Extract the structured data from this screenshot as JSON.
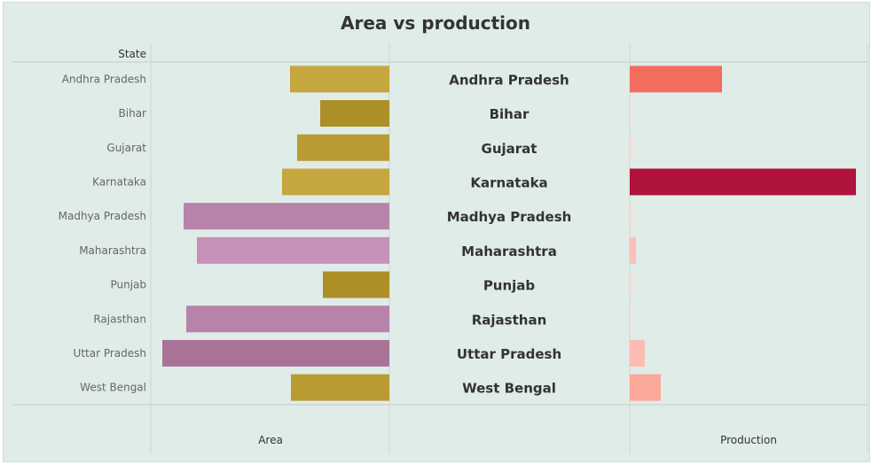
{
  "chart_data": {
    "type": "bar",
    "title": "Area vs production",
    "row_header": "State",
    "categories": [
      "Andhra Pradesh",
      "Bihar",
      "Gujarat",
      "Karnataka",
      "Madhya Pradesh",
      "Maharashtra",
      "Punjab",
      "Rajasthan",
      "Uttar Pradesh",
      "West Bengal"
    ],
    "series": [
      {
        "name": "Area",
        "values": [
          112,
          78,
          104,
          121,
          232,
          217,
          75,
          229,
          256,
          111
        ],
        "colors": [
          "#c5a63f",
          "#ad8f28",
          "#b99b32",
          "#c5a63f",
          "#b883aa",
          "#c691b8",
          "#ad8f28",
          "#b883aa",
          "#a97398",
          "#b99b32"
        ]
      },
      {
        "name": "Production",
        "values": [
          104,
          1,
          2,
          255,
          2,
          7,
          2,
          1,
          17,
          35
        ],
        "colors": [
          "#f36d5e",
          "#fcd8d2",
          "#fcd8d2",
          "#b0133b",
          "#fcd8d2",
          "#fcc0b8",
          "#fcd8d2",
          "#fcd8d2",
          "#fdbcb2",
          "#fba899"
        ]
      }
    ],
    "xlabel_left": "Area",
    "xlabel_right": "Production"
  }
}
